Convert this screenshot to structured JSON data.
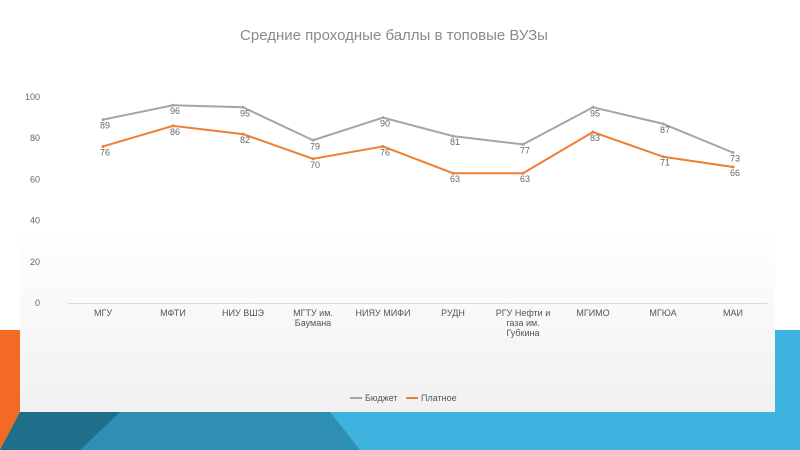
{
  "slide": {
    "accent_colors": {
      "orange": "#f36a24",
      "teal": "#2f8fb3",
      "dark_teal": "#1f6f8b",
      "light_blue": "#3eb3df"
    }
  },
  "chart_data": {
    "type": "line",
    "title": "Средние проходные баллы в топовые ВУЗы",
    "xlabel": "",
    "ylabel": "",
    "ylim": [
      0,
      100
    ],
    "yticks": [
      0,
      20,
      40,
      60,
      80,
      100
    ],
    "grid": false,
    "legend_position": "bottom",
    "categories": [
      [
        "МГУ"
      ],
      [
        "МФТИ"
      ],
      [
        "НИУ ВШЭ"
      ],
      [
        "МГТУ им.",
        "Баумана"
      ],
      [
        "НИЯУ МИФИ"
      ],
      [
        "РУДН"
      ],
      [
        "РГУ Нефти и",
        "газа им.",
        "Губкина"
      ],
      [
        "МГИМО"
      ],
      [
        "МГЮА"
      ],
      [
        "МАИ"
      ]
    ],
    "series": [
      {
        "name": "Бюджет",
        "color": "#a5a5a5",
        "values": [
          89,
          96,
          95,
          79,
          90,
          81,
          77,
          95,
          87,
          73
        ]
      },
      {
        "name": "Платное",
        "color": "#f07e32",
        "values": [
          76,
          86,
          82,
          70,
          76,
          63,
          63,
          83,
          71,
          66
        ]
      }
    ]
  }
}
